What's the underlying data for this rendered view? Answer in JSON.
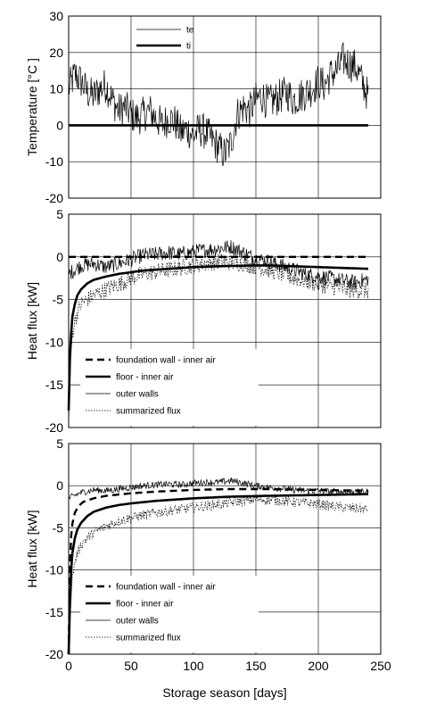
{
  "chart_data": [
    {
      "type": "line",
      "ylabel": "Temperature [°C ]",
      "xlim": [
        0,
        250
      ],
      "ylim": [
        -20,
        30
      ],
      "yticks": [
        30,
        20,
        10,
        0,
        -10,
        -20
      ],
      "grid": true,
      "legend": {
        "placement": "top-center"
      },
      "series": [
        {
          "name": "te",
          "style": "thin-noisy",
          "x": [
            0,
            5,
            10,
            15,
            20,
            25,
            30,
            35,
            40,
            45,
            50,
            55,
            60,
            65,
            70,
            75,
            80,
            85,
            90,
            95,
            100,
            105,
            110,
            115,
            120,
            125,
            130,
            135,
            140,
            145,
            150,
            155,
            160,
            165,
            170,
            175,
            180,
            185,
            190,
            195,
            200,
            205,
            210,
            215,
            220,
            225,
            230,
            235,
            240
          ],
          "values": [
            10,
            14,
            12,
            9,
            8,
            10,
            11,
            7,
            4,
            5,
            3,
            2,
            3,
            4,
            2,
            0,
            2,
            1,
            -2,
            -1,
            -3,
            -1,
            -2,
            -4,
            -6,
            -8,
            -5,
            3,
            5,
            4,
            7,
            8,
            6,
            7,
            8,
            9,
            7,
            8,
            9,
            10,
            12,
            11,
            14,
            15,
            18,
            17,
            16,
            12,
            8
          ],
          "noise_amplitude": 5
        },
        {
          "name": "ti",
          "style": "thick-solid",
          "x": [
            0,
            240
          ],
          "values": [
            0,
            0
          ]
        }
      ]
    },
    {
      "type": "line",
      "ylabel": "Heat flux [kW]",
      "xlim": [
        0,
        250
      ],
      "ylim": [
        -20,
        5
      ],
      "yticks": [
        5,
        0,
        -5,
        -10,
        -15,
        -20
      ],
      "grid": true,
      "legend": {
        "placement": "bottom-left"
      },
      "series": [
        {
          "name": "foundation wall - inner air",
          "style": "dashed-thick",
          "x": [
            0,
            240
          ],
          "values": [
            0,
            0
          ]
        },
        {
          "name": "floor - inner air",
          "style": "thick-solid",
          "x": [
            0,
            1,
            2,
            3,
            5,
            7,
            10,
            15,
            20,
            30,
            40,
            50,
            60,
            80,
            100,
            120,
            150,
            160,
            180,
            200,
            220,
            240
          ],
          "values": [
            -18,
            -12,
            -9,
            -7,
            -5.5,
            -4.5,
            -3.8,
            -3.1,
            -2.7,
            -2.3,
            -2.0,
            -1.8,
            -1.6,
            -1.4,
            -1.2,
            -1.1,
            -1.0,
            -1.0,
            -1.1,
            -1.2,
            -1.3,
            -1.4
          ]
        },
        {
          "name": "outer walls",
          "style": "thin-noisy",
          "x": [
            0,
            10,
            20,
            30,
            40,
            50,
            60,
            70,
            80,
            90,
            100,
            110,
            120,
            130,
            140,
            150,
            160,
            170,
            180,
            190,
            200,
            210,
            220,
            230,
            240
          ],
          "values": [
            -2.0,
            -1.0,
            -0.8,
            -1.2,
            -0.8,
            -0.3,
            0.2,
            0.3,
            0.5,
            0.3,
            0.6,
            0.8,
            1.0,
            1.2,
            0.5,
            -0.2,
            -0.5,
            -1.0,
            -1.5,
            -2.0,
            -2.3,
            -2.5,
            -2.8,
            -3.0,
            -2.6
          ],
          "noise_amplitude": 0.9
        },
        {
          "name": "summarized flux",
          "style": "dotted-noisy",
          "x": [
            0,
            1,
            2,
            3,
            5,
            7,
            10,
            15,
            20,
            30,
            40,
            50,
            60,
            80,
            100,
            120,
            140,
            160,
            180,
            200,
            220,
            240
          ],
          "values": [
            -20,
            -14,
            -11,
            -9,
            -7.5,
            -6.5,
            -5.5,
            -5.0,
            -4.5,
            -3.8,
            -3.2,
            -2.5,
            -2.0,
            -1.5,
            -1.0,
            -0.5,
            -0.8,
            -1.5,
            -2.5,
            -3.2,
            -3.8,
            -4.0
          ],
          "noise_amplitude": 1.0
        }
      ]
    },
    {
      "type": "line",
      "ylabel": "Heat flux [kW]",
      "xlabel": "Storage season [days]",
      "xlim": [
        0,
        250
      ],
      "xticks": [
        0,
        50,
        100,
        150,
        200,
        250
      ],
      "ylim": [
        -20,
        5
      ],
      "yticks": [
        5,
        0,
        -5,
        -10,
        -15,
        -20
      ],
      "grid": true,
      "legend": {
        "placement": "bottom-left"
      },
      "series": [
        {
          "name": "foundation wall - inner air",
          "style": "dashed-thick",
          "x": [
            0,
            1,
            2,
            3,
            5,
            8,
            12,
            20,
            30,
            50,
            70,
            100,
            130,
            160,
            200,
            240
          ],
          "values": [
            -20,
            -10,
            -6,
            -4.5,
            -3.2,
            -2.4,
            -1.9,
            -1.5,
            -1.2,
            -0.9,
            -0.7,
            -0.5,
            -0.4,
            -0.4,
            -0.5,
            -0.6
          ]
        },
        {
          "name": "floor - inner air",
          "style": "thick-solid",
          "x": [
            0,
            1,
            2,
            3,
            5,
            7,
            10,
            15,
            20,
            30,
            40,
            50,
            70,
            100,
            130,
            160,
            200,
            240
          ],
          "values": [
            -20,
            -14,
            -10,
            -8,
            -6.2,
            -5.2,
            -4.4,
            -3.6,
            -3.1,
            -2.6,
            -2.3,
            -2.1,
            -1.8,
            -1.5,
            -1.3,
            -1.2,
            -1.1,
            -1.0
          ]
        },
        {
          "name": "outer walls",
          "style": "thin-noisy",
          "x": [
            0,
            10,
            20,
            30,
            40,
            50,
            60,
            70,
            80,
            90,
            100,
            110,
            120,
            130,
            140,
            150,
            160,
            170,
            180,
            190,
            200,
            210,
            220,
            230,
            240
          ],
          "values": [
            -1.5,
            -0.8,
            -0.5,
            -0.6,
            -0.4,
            -0.2,
            0.0,
            0.1,
            0.2,
            0.1,
            0.3,
            0.4,
            0.4,
            0.6,
            0.3,
            0.0,
            -0.2,
            -0.3,
            -0.5,
            -0.6,
            -0.6,
            -0.7,
            -0.7,
            -0.8,
            -0.7
          ],
          "noise_amplitude": 0.4
        },
        {
          "name": "summarized flux",
          "style": "dotted-noisy",
          "x": [
            0,
            1,
            2,
            3,
            5,
            7,
            10,
            15,
            20,
            30,
            40,
            50,
            70,
            100,
            130,
            150,
            170,
            200,
            220,
            240
          ],
          "values": [
            -20,
            -16,
            -13,
            -11,
            -9,
            -8,
            -7,
            -6.2,
            -5.6,
            -4.8,
            -4.2,
            -3.8,
            -3.2,
            -2.6,
            -2.0,
            -1.6,
            -1.8,
            -2.2,
            -2.6,
            -2.8
          ],
          "noise_amplitude": 0.6
        }
      ]
    }
  ]
}
